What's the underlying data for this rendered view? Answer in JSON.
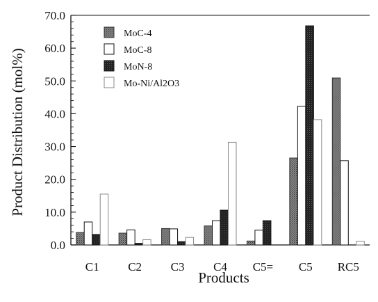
{
  "chart_data": {
    "type": "bar",
    "categories": [
      "C1",
      "C2",
      "C3",
      "C4",
      "C5=",
      "C5",
      "RC5"
    ],
    "series": [
      {
        "name": "MoC-4",
        "values": [
          3.8,
          3.6,
          5.0,
          5.8,
          1.2,
          26.5,
          50.9
        ]
      },
      {
        "name": "MoC-8",
        "values": [
          7.0,
          4.6,
          4.9,
          7.4,
          4.5,
          42.3,
          25.7
        ]
      },
      {
        "name": "MoN-8",
        "values": [
          3.2,
          0.5,
          1.0,
          10.6,
          7.4,
          66.8,
          0.0
        ]
      },
      {
        "name": "Mo-Ni/Al2O3",
        "values": [
          15.5,
          1.6,
          2.3,
          31.3,
          0.0,
          38.2,
          1.1
        ]
      }
    ],
    "xlabel": "Products",
    "ylabel": "Product Distribution (mol%)",
    "ylim": [
      0,
      70
    ],
    "yticks": [
      "0.0",
      "10.0",
      "20.0",
      "30.0",
      "40.0",
      "50.0",
      "60.0",
      "70.0"
    ],
    "grid": false,
    "legend_position": "top-left",
    "legend": [
      {
        "label": "MoC-4",
        "swatch": "gray-stipple"
      },
      {
        "label": "MoC-8",
        "swatch": "white"
      },
      {
        "label": "MoN-8",
        "swatch": "dark"
      },
      {
        "label": "Mo-Ni/Al2O3",
        "swatch": "white"
      }
    ],
    "colors": {
      "MoC-4": "#6e6e6e",
      "MoC-8": "#ffffff",
      "MoN-8": "#2a2a2a",
      "Mo-Ni/Al2O3": "#ffffff"
    }
  }
}
